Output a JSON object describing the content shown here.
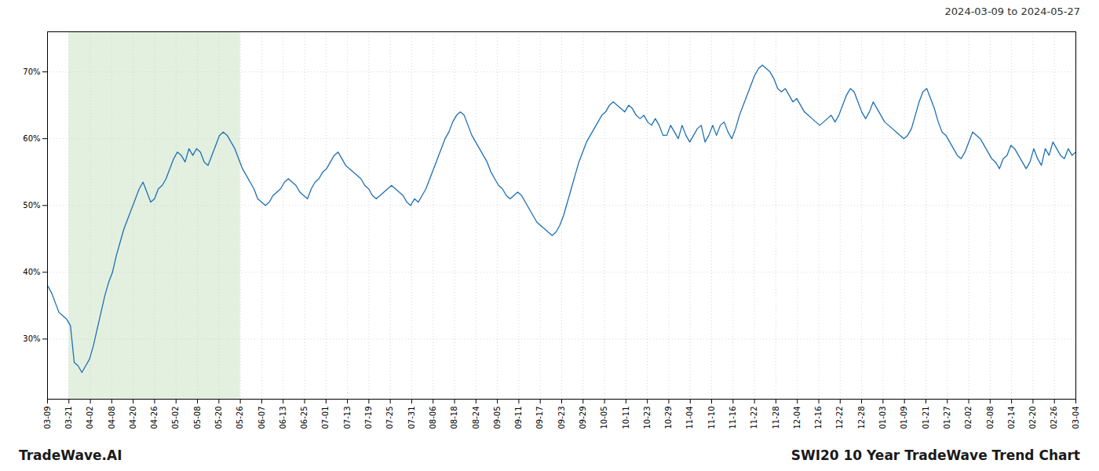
{
  "chart_data": {
    "type": "line",
    "title": "SWI20 10 Year TradeWave Trend Chart",
    "subtitle": "2024-03-09 to 2024-05-27",
    "annotations": [
      "TradeWave.AI"
    ],
    "color": "#1f6fb2",
    "grid": true,
    "shaded_x": [
      5.604166666666667,
      50.4375
    ],
    "shaded_color": "#d4e8d0",
    "xlim": [
      0,
      269
    ],
    "xticks": [
      {
        "value": 0,
        "label": "03-09"
      },
      {
        "value": 5.604166666666667,
        "label": "03-21"
      },
      {
        "value": 11.208333333333334,
        "label": "04-02"
      },
      {
        "value": 16.8125,
        "label": "04-08"
      },
      {
        "value": 22.416666666666668,
        "label": "04-20"
      },
      {
        "value": 28.020833333333336,
        "label": "04-26"
      },
      {
        "value": 33.625,
        "label": "05-02"
      },
      {
        "value": 39.229166666666664,
        "label": "05-08"
      },
      {
        "value": 44.833333333333336,
        "label": "05-20"
      },
      {
        "value": 50.4375,
        "label": "05-26"
      },
      {
        "value": 56.041666666666664,
        "label": "06-07"
      },
      {
        "value": 61.645833333333336,
        "label": "06-13"
      },
      {
        "value": 67.25,
        "label": "06-25"
      },
      {
        "value": 72.85416666666667,
        "label": "07-01"
      },
      {
        "value": 78.45833333333333,
        "label": "07-13"
      },
      {
        "value": 84.0625,
        "label": "07-19"
      },
      {
        "value": 89.66666666666667,
        "label": "07-25"
      },
      {
        "value": 95.27083333333333,
        "label": "07-31"
      },
      {
        "value": 100.875,
        "label": "08-06"
      },
      {
        "value": 106.47916666666667,
        "label": "08-18"
      },
      {
        "value": 112.08333333333333,
        "label": "08-24"
      },
      {
        "value": 117.6875,
        "label": "09-05"
      },
      {
        "value": 123.29166666666667,
        "label": "09-11"
      },
      {
        "value": 128.89583333333334,
        "label": "09-17"
      },
      {
        "value": 134.5,
        "label": "09-23"
      },
      {
        "value": 140.10416666666666,
        "label": "09-29"
      },
      {
        "value": 145.70833333333334,
        "label": "10-05"
      },
      {
        "value": 151.3125,
        "label": "10-11"
      },
      {
        "value": 156.91666666666666,
        "label": "10-23"
      },
      {
        "value": 162.52083333333334,
        "label": "10-29"
      },
      {
        "value": 168.125,
        "label": "11-04"
      },
      {
        "value": 173.72916666666666,
        "label": "11-10"
      },
      {
        "value": 179.33333333333334,
        "label": "11-16"
      },
      {
        "value": 184.9375,
        "label": "11-22"
      },
      {
        "value": 190.54166666666666,
        "label": "11-28"
      },
      {
        "value": 196.14583333333334,
        "label": "12-04"
      },
      {
        "value": 201.75,
        "label": "12-16"
      },
      {
        "value": 207.35416666666666,
        "label": "12-22"
      },
      {
        "value": 212.95833333333334,
        "label": "12-28"
      },
      {
        "value": 218.5625,
        "label": "01-03"
      },
      {
        "value": 224.16666666666666,
        "label": "01-09"
      },
      {
        "value": 229.77083333333334,
        "label": "01-21"
      },
      {
        "value": 235.375,
        "label": "01-27"
      },
      {
        "value": 240.97916666666666,
        "label": "02-02"
      },
      {
        "value": 246.58333333333334,
        "label": "02-08"
      },
      {
        "value": 252.1875,
        "label": "02-14"
      },
      {
        "value": 257.7916666666667,
        "label": "02-20"
      },
      {
        "value": 263.3958333333333,
        "label": "02-26"
      },
      {
        "value": 269,
        "label": "03-04"
      }
    ],
    "ylim": [
      21,
      76
    ],
    "yticks": [
      {
        "value": 30,
        "label": "30%"
      },
      {
        "value": 40,
        "label": "40%"
      },
      {
        "value": 50,
        "label": "50%"
      },
      {
        "value": 60,
        "label": "60%"
      },
      {
        "value": 70,
        "label": "70%"
      }
    ],
    "values": [
      38.0,
      37.0,
      35.5,
      34.0,
      33.5,
      33.0,
      32.0,
      26.5,
      26.0,
      25.0,
      26.0,
      27.0,
      29.0,
      31.5,
      34.0,
      36.5,
      38.5,
      40.0,
      42.5,
      44.5,
      46.5,
      48.0,
      49.5,
      51.0,
      52.5,
      53.5,
      52.0,
      50.5,
      51.0,
      52.5,
      53.0,
      54.0,
      55.5,
      57.0,
      58.0,
      57.5,
      56.5,
      58.5,
      57.5,
      58.5,
      58.0,
      56.5,
      56.0,
      57.5,
      59.0,
      60.5,
      61.0,
      60.5,
      59.5,
      58.5,
      57.0,
      55.5,
      54.5,
      53.5,
      52.5,
      51.0,
      50.5,
      50.0,
      50.5,
      51.5,
      52.0,
      52.5,
      53.5,
      54.0,
      53.5,
      53.0,
      52.0,
      51.5,
      51.0,
      52.5,
      53.5,
      54.0,
      55.0,
      55.5,
      56.5,
      57.5,
      58.0,
      57.0,
      56.0,
      55.5,
      55.0,
      54.5,
      54.0,
      53.0,
      52.5,
      51.5,
      51.0,
      51.5,
      52.0,
      52.5,
      53.0,
      52.5,
      52.0,
      51.5,
      50.5,
      50.0,
      51.0,
      50.5,
      51.5,
      52.5,
      54.0,
      55.5,
      57.0,
      58.5,
      60.0,
      61.0,
      62.5,
      63.5,
      64.0,
      63.5,
      62.0,
      60.5,
      59.5,
      58.5,
      57.5,
      56.5,
      55.0,
      54.0,
      53.0,
      52.5,
      51.5,
      51.0,
      51.5,
      52.0,
      51.5,
      50.5,
      49.5,
      48.5,
      47.5,
      47.0,
      46.5,
      46.0,
      45.5,
      46.0,
      47.0,
      48.5,
      50.5,
      52.5,
      54.5,
      56.5,
      58.0,
      59.5,
      60.5,
      61.5,
      62.5,
      63.5,
      64.0,
      65.0,
      65.5,
      65.0,
      64.5,
      64.0,
      65.0,
      64.5,
      63.5,
      63.0,
      63.5,
      62.5,
      62.0,
      63.0,
      62.0,
      60.5,
      60.5,
      62.0,
      61.0,
      60.0,
      62.0,
      60.5,
      59.5,
      60.5,
      61.5,
      62.0,
      59.5,
      60.5,
      62.0,
      60.5,
      62.0,
      62.5,
      61.0,
      60.0,
      61.5,
      63.5,
      65.0,
      66.5,
      68.0,
      69.5,
      70.5,
      71.0,
      70.5,
      70.0,
      69.0,
      67.5,
      67.0,
      67.5,
      66.5,
      65.5,
      66.0,
      65.0,
      64.0,
      63.5,
      63.0,
      62.5,
      62.0,
      62.5,
      63.0,
      63.5,
      62.5,
      63.5,
      65.0,
      66.5,
      67.5,
      67.0,
      65.5,
      64.0,
      63.0,
      64.0,
      65.5,
      64.5,
      63.5,
      62.5,
      62.0,
      61.5,
      61.0,
      60.5,
      60.0,
      60.5,
      61.5,
      63.5,
      65.5,
      67.0,
      67.5,
      66.0,
      64.5,
      62.5,
      61.0,
      60.5,
      59.5,
      58.5,
      57.5,
      57.0,
      58.0,
      59.5,
      61.0,
      60.5,
      60.0,
      59.0,
      58.0,
      57.0,
      56.5,
      55.5,
      57.0,
      57.5,
      59.0,
      58.5,
      57.5,
      56.5,
      55.5,
      56.5,
      58.5,
      57.0,
      56.0,
      58.5,
      57.5,
      59.5,
      58.5,
      57.5,
      57.0,
      58.5,
      57.5,
      58.0
    ]
  }
}
